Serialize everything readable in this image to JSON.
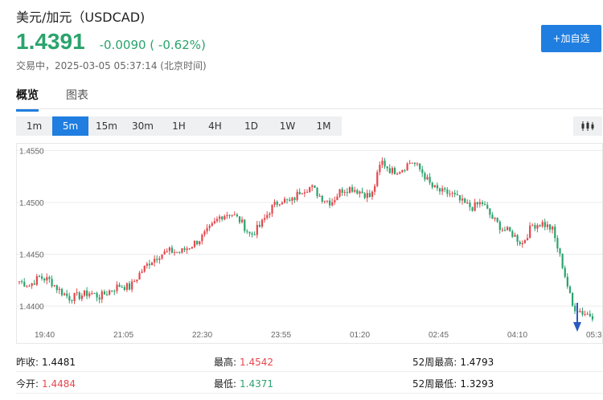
{
  "header": {
    "title": "美元/加元（USDCAD)",
    "price": "1.4391",
    "change": "-0.0090 ( -0.62%)",
    "trade_time": "交易中，2025-03-05 05:37:14 (北京时间)",
    "add_button": "+加自选"
  },
  "tabs": [
    {
      "label": "概览",
      "active": true
    },
    {
      "label": "图表",
      "active": false
    }
  ],
  "periods": [
    {
      "label": "1m",
      "active": false
    },
    {
      "label": "5m",
      "active": true
    },
    {
      "label": "15m",
      "active": false
    },
    {
      "label": "30m",
      "active": false
    },
    {
      "label": "1H",
      "active": false
    },
    {
      "label": "4H",
      "active": false
    },
    {
      "label": "1D",
      "active": false
    },
    {
      "label": "1W",
      "active": false
    },
    {
      "label": "1M",
      "active": false
    }
  ],
  "chart_type_icon": "candlestick-icon",
  "colors": {
    "up": "#2ba36c",
    "down": "#e5474d",
    "accent": "#1f7ee0"
  },
  "chart_data": {
    "type": "candlestick",
    "y_ticks": [
      "1.4550",
      "1.4500",
      "1.4450",
      "1.4400"
    ],
    "ylim": [
      1.438,
      1.4555
    ],
    "x_ticks": [
      "19:40",
      "21:05",
      "22:30",
      "23:55",
      "01:20",
      "02:45",
      "04:10",
      "05:3"
    ],
    "grid": true,
    "marker": "current-position-arrow",
    "close_path": [
      1.4424,
      1.442,
      1.4428,
      1.4425,
      1.4415,
      1.4408,
      1.441,
      1.4413,
      1.4409,
      1.4415,
      1.442,
      1.4418,
      1.4432,
      1.4443,
      1.445,
      1.4453,
      1.4452,
      1.4458,
      1.4465,
      1.4475,
      1.4487,
      1.449,
      1.4482,
      1.4468,
      1.4478,
      1.4494,
      1.4503,
      1.45,
      1.4512,
      1.4515,
      1.4505,
      1.45,
      1.4512,
      1.4514,
      1.451,
      1.4505,
      1.454,
      1.453,
      1.4532,
      1.454,
      1.453,
      1.4515,
      1.451,
      1.4508,
      1.45,
      1.4495,
      1.45,
      1.4485,
      1.4475,
      1.447,
      1.446,
      1.4478,
      1.448,
      1.4474,
      1.444,
      1.44,
      1.4394,
      1.4391
    ]
  },
  "stats": [
    [
      {
        "label": "昨收:",
        "value": "1.4481",
        "tone": "dark"
      },
      {
        "label": "最高:",
        "value": "1.4542",
        "tone": "red"
      },
      {
        "label": "52周最高:",
        "value": "1.4793",
        "tone": "dark"
      }
    ],
    [
      {
        "label": "今开:",
        "value": "1.4484",
        "tone": "red"
      },
      {
        "label": "最低:",
        "value": "1.4371",
        "tone": "green"
      },
      {
        "label": "52周最低:",
        "value": "1.3293",
        "tone": "dark"
      }
    ]
  ]
}
